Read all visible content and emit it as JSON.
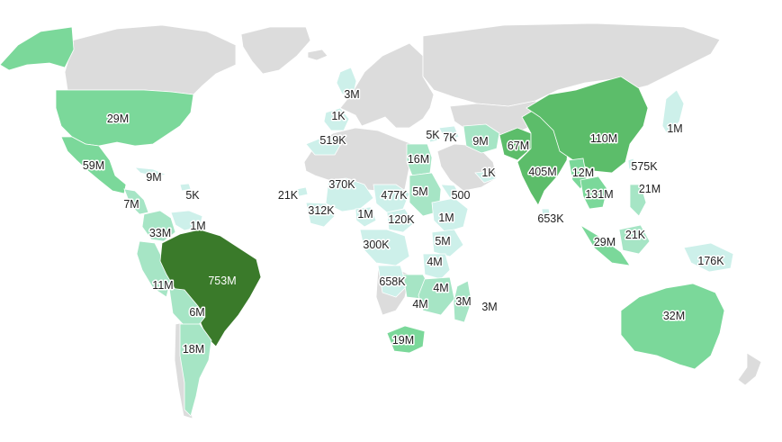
{
  "colors": {
    "no_data": "#dcdcdc",
    "tier1": "#cdf0ea",
    "tier2": "#a6e5c5",
    "tier3": "#7bd89a",
    "tier4": "#5cbd6a",
    "tier5": "#3a7a2a",
    "background": "#ffffff"
  },
  "regions": [
    {
      "id": "alaska",
      "value": "",
      "tier": 3
    },
    {
      "id": "usa",
      "value": "29M",
      "tier": 3
    },
    {
      "id": "mexico",
      "value": "59M",
      "tier": 3
    },
    {
      "id": "central-america",
      "value": "7M",
      "tier": 2
    },
    {
      "id": "cuba",
      "value": "9M",
      "tier": 1
    },
    {
      "id": "caribbean",
      "value": "5K",
      "tier": 1
    },
    {
      "id": "colombia",
      "value": "33M",
      "tier": 2
    },
    {
      "id": "venezuela",
      "value": "1M",
      "tier": 1
    },
    {
      "id": "peru",
      "value": "11M",
      "tier": 2
    },
    {
      "id": "brazil",
      "value": "753M",
      "tier": 5
    },
    {
      "id": "bolivia",
      "value": "6M",
      "tier": 2
    },
    {
      "id": "argentina",
      "value": "18M",
      "tier": 2
    },
    {
      "id": "uk",
      "value": "3M",
      "tier": 1
    },
    {
      "id": "france",
      "value": "1K",
      "tier": 1
    },
    {
      "id": "spain",
      "value": "519K",
      "tier": 1
    },
    {
      "id": "cape-verde",
      "value": "21K",
      "tier": 1
    },
    {
      "id": "west-africa",
      "value": "370K",
      "tier": 1
    },
    {
      "id": "guinea",
      "value": "312K",
      "tier": 1
    },
    {
      "id": "ghana",
      "value": "1M",
      "tier": 1
    },
    {
      "id": "nigeria",
      "value": "477K",
      "tier": 1
    },
    {
      "id": "cameroon",
      "value": "120K",
      "tier": 1
    },
    {
      "id": "congo",
      "value": "300K",
      "tier": 1
    },
    {
      "id": "egypt",
      "value": "16M",
      "tier": 2
    },
    {
      "id": "sudan",
      "value": "5M",
      "tier": 2
    },
    {
      "id": "eritrea",
      "value": "500",
      "tier": 1
    },
    {
      "id": "ethiopia",
      "value": "1M",
      "tier": 1
    },
    {
      "id": "kenya",
      "value": "5M",
      "tier": 1
    },
    {
      "id": "tanzania",
      "value": "4M",
      "tier": 1
    },
    {
      "id": "angola",
      "value": "658K",
      "tier": 1
    },
    {
      "id": "zambia",
      "value": "4M",
      "tier": 2
    },
    {
      "id": "mozambique",
      "value": "4M",
      "tier": 2
    },
    {
      "id": "madagascar",
      "value": "3M",
      "tier": 2
    },
    {
      "id": "mauritius",
      "value": "3M",
      "tier": 1
    },
    {
      "id": "south-africa",
      "value": "19M",
      "tier": 3
    },
    {
      "id": "israel",
      "value": "5K",
      "tier": 1
    },
    {
      "id": "syria",
      "value": "7K",
      "tier": 1
    },
    {
      "id": "iran",
      "value": "9M",
      "tier": 2
    },
    {
      "id": "yemen",
      "value": "1K",
      "tier": 1
    },
    {
      "id": "pakistan",
      "value": "67M",
      "tier": 4
    },
    {
      "id": "india",
      "value": "405M",
      "tier": 4
    },
    {
      "id": "sri-lanka",
      "value": "653K",
      "tier": 1
    },
    {
      "id": "china",
      "value": "110M",
      "tier": 4
    },
    {
      "id": "myanmar",
      "value": "12M",
      "tier": 3
    },
    {
      "id": "thailand",
      "value": "131M",
      "tier": 3
    },
    {
      "id": "taiwan",
      "value": "575K",
      "tier": 1
    },
    {
      "id": "philippines",
      "value": "21M",
      "tier": 2
    },
    {
      "id": "japan",
      "value": "1M",
      "tier": 1
    },
    {
      "id": "sumatra",
      "value": "29M",
      "tier": 3
    },
    {
      "id": "borneo",
      "value": "21K",
      "tier": 2
    },
    {
      "id": "papua",
      "value": "176K",
      "tier": 1
    },
    {
      "id": "australia",
      "value": "32M",
      "tier": 3
    }
  ]
}
